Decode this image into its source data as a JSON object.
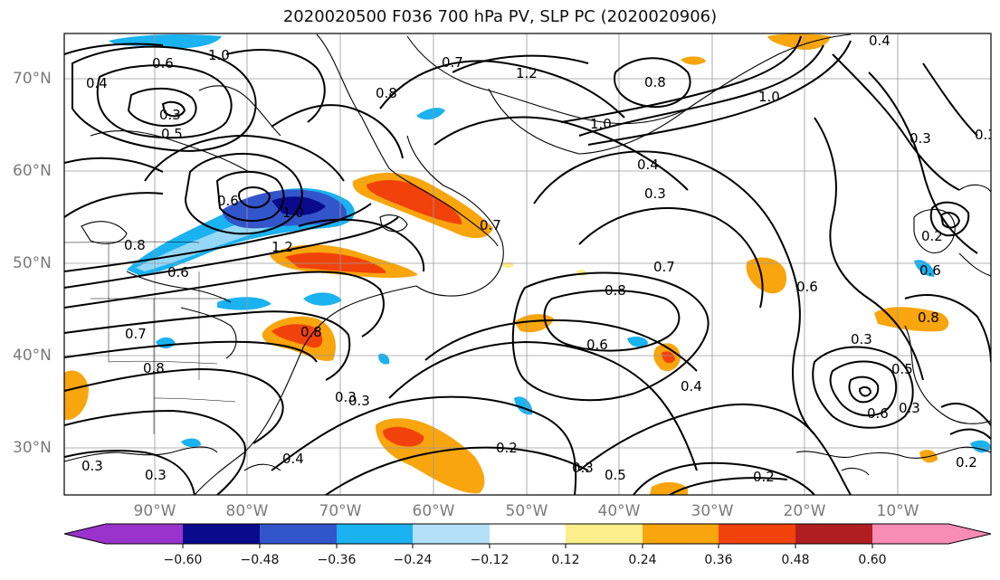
{
  "title": "2020020500 F036 700 hPa PV, SLP PC (2020020906)",
  "lat_labels": [
    "70°N",
    "60°N",
    "50°N",
    "40°N",
    "30°N"
  ],
  "lon_labels": [
    "90°W",
    "80°W",
    "70°W",
    "60°W",
    "50°W",
    "40°W",
    "30°W",
    "20°W",
    "10°W"
  ],
  "colorbar": {
    "ticks": [
      "−0.60",
      "−0.48",
      "−0.36",
      "−0.24",
      "−0.12",
      "0.12",
      "0.24",
      "0.36",
      "0.48",
      "0.60"
    ],
    "colors": [
      "#9933cc",
      "#0a0a8c",
      "#3355cc",
      "#1ab2f0",
      "#b3e0f7",
      "#ffffff",
      "#fdee8c",
      "#f8a50e",
      "#f2420b",
      "#b01e22",
      "#f98cb5"
    ]
  },
  "contour_labels": [
    "0.4",
    "0.6",
    "1.0",
    "0.3",
    "0.5",
    "0.8",
    "0.7",
    "1.2",
    "0.8",
    "1.0",
    "0.4",
    "0.3",
    "0.6",
    "1.0",
    "0.8",
    "0.7",
    "0.6",
    "0.3",
    "0.8",
    "0.2",
    "0.3",
    "0.4",
    "0.7",
    "0.8",
    "0.6",
    "0.4",
    "0.3",
    "0.2",
    "0.5",
    "0.3",
    "0.6",
    "0.3",
    "0.6",
    "0.8",
    "0.5",
    "0.6",
    "0.3",
    "0.2",
    "0.2",
    "0.3",
    "0.7",
    "1.2",
    "1.0",
    "0.4",
    "0.3",
    "0.3",
    "0.8"
  ]
}
